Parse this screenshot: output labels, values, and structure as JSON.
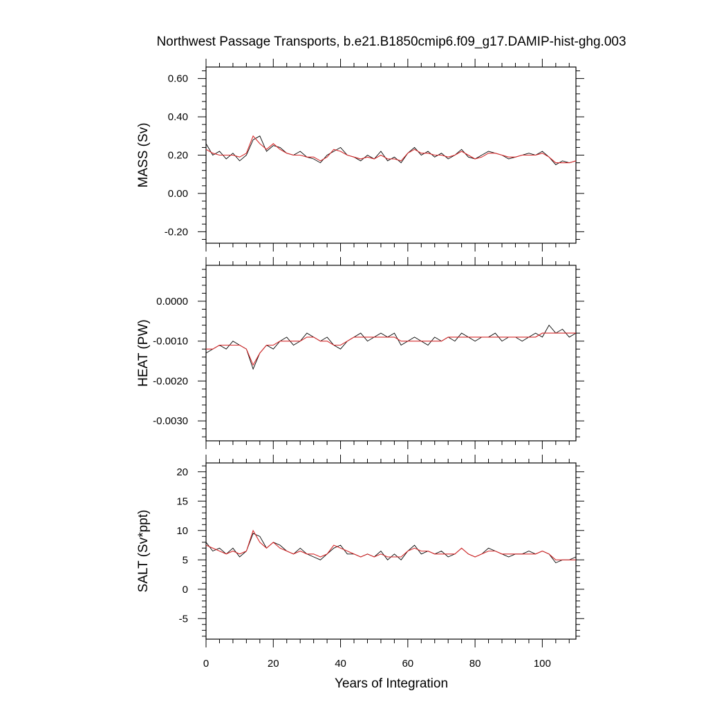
{
  "chart_data": {
    "type": "line",
    "title": "Northwest Passage Transports, b.e21.B1850cmip6.f09_g17.DAMIP-hist-ghg.003",
    "xlabel": "Years of Integration",
    "xlim": [
      0,
      110
    ],
    "x_ticks": [
      0,
      20,
      40,
      60,
      80,
      100
    ],
    "x_tick_labels": [
      "0",
      "20",
      "40",
      "60",
      "80",
      "100"
    ],
    "grid": false,
    "legend": "none",
    "raw_series_color": "#000000",
    "smooth_series_color": "#d62728",
    "panels": [
      {
        "id": "mass",
        "ylabel": "MASS (Sv)",
        "ylim": [
          -0.26,
          0.66
        ],
        "y_ticks": [
          -0.2,
          0.0,
          0.2,
          0.4,
          0.6
        ],
        "y_tick_labels": [
          "-0.20",
          "0.00",
          "0.20",
          "0.40",
          "0.60"
        ],
        "x": [
          0,
          2,
          4,
          6,
          8,
          10,
          12,
          14,
          16,
          18,
          20,
          22,
          24,
          26,
          28,
          30,
          32,
          34,
          36,
          38,
          40,
          42,
          44,
          46,
          48,
          50,
          52,
          54,
          56,
          58,
          60,
          62,
          64,
          66,
          68,
          70,
          72,
          74,
          76,
          78,
          80,
          82,
          84,
          86,
          88,
          90,
          92,
          94,
          96,
          98,
          100,
          102,
          104,
          106,
          108,
          110
        ],
        "raw_values": [
          0.26,
          0.2,
          0.22,
          0.18,
          0.21,
          0.17,
          0.2,
          0.28,
          0.3,
          0.22,
          0.25,
          0.24,
          0.21,
          0.2,
          0.22,
          0.19,
          0.18,
          0.16,
          0.2,
          0.22,
          0.24,
          0.2,
          0.19,
          0.17,
          0.2,
          0.18,
          0.22,
          0.17,
          0.19,
          0.16,
          0.21,
          0.24,
          0.2,
          0.22,
          0.19,
          0.21,
          0.18,
          0.2,
          0.23,
          0.19,
          0.18,
          0.2,
          0.22,
          0.21,
          0.2,
          0.18,
          0.19,
          0.2,
          0.21,
          0.2,
          0.22,
          0.19,
          0.15,
          0.17,
          0.16,
          0.17
        ],
        "smooth_values": [
          0.23,
          0.21,
          0.2,
          0.2,
          0.2,
          0.19,
          0.21,
          0.3,
          0.26,
          0.23,
          0.26,
          0.23,
          0.21,
          0.2,
          0.2,
          0.19,
          0.19,
          0.17,
          0.19,
          0.23,
          0.22,
          0.2,
          0.19,
          0.18,
          0.19,
          0.18,
          0.2,
          0.18,
          0.18,
          0.17,
          0.21,
          0.23,
          0.21,
          0.21,
          0.2,
          0.2,
          0.19,
          0.2,
          0.22,
          0.2,
          0.18,
          0.19,
          0.21,
          0.21,
          0.2,
          0.19,
          0.19,
          0.2,
          0.2,
          0.2,
          0.21,
          0.19,
          0.16,
          0.16,
          0.16,
          0.17
        ]
      },
      {
        "id": "heat",
        "ylabel": "HEAT (PW)",
        "ylim": [
          -0.0035,
          0.0009
        ],
        "y_ticks": [
          -0.003,
          -0.002,
          -0.001,
          0.0
        ],
        "y_tick_labels": [
          "-0.0030",
          "-0.0020",
          "-0.0010",
          "0.0000"
        ],
        "x": [
          0,
          2,
          4,
          6,
          8,
          10,
          12,
          14,
          16,
          18,
          20,
          22,
          24,
          26,
          28,
          30,
          32,
          34,
          36,
          38,
          40,
          42,
          44,
          46,
          48,
          50,
          52,
          54,
          56,
          58,
          60,
          62,
          64,
          66,
          68,
          70,
          72,
          74,
          76,
          78,
          80,
          82,
          84,
          86,
          88,
          90,
          92,
          94,
          96,
          98,
          100,
          102,
          104,
          106,
          108,
          110
        ],
        "raw_values": [
          -0.0013,
          -0.0012,
          -0.0011,
          -0.0012,
          -0.001,
          -0.0011,
          -0.0012,
          -0.0017,
          -0.0013,
          -0.0011,
          -0.0012,
          -0.001,
          -0.0009,
          -0.0011,
          -0.001,
          -0.0008,
          -0.0009,
          -0.001,
          -0.0009,
          -0.0011,
          -0.0012,
          -0.001,
          -0.0009,
          -0.0008,
          -0.001,
          -0.0009,
          -0.0008,
          -0.0009,
          -0.0008,
          -0.0011,
          -0.001,
          -0.0009,
          -0.001,
          -0.0011,
          -0.0009,
          -0.001,
          -0.0009,
          -0.001,
          -0.0008,
          -0.0009,
          -0.001,
          -0.0009,
          -0.0009,
          -0.0008,
          -0.001,
          -0.0009,
          -0.0009,
          -0.001,
          -0.0009,
          -0.0008,
          -0.0009,
          -0.0006,
          -0.0008,
          -0.0007,
          -0.0009,
          -0.0008
        ],
        "smooth_values": [
          -0.0012,
          -0.0012,
          -0.0011,
          -0.0011,
          -0.0011,
          -0.0011,
          -0.0012,
          -0.0016,
          -0.0013,
          -0.0011,
          -0.0011,
          -0.001,
          -0.001,
          -0.001,
          -0.001,
          -0.0009,
          -0.0009,
          -0.001,
          -0.001,
          -0.0011,
          -0.0011,
          -0.001,
          -0.0009,
          -0.0009,
          -0.0009,
          -0.0009,
          -0.0009,
          -0.0009,
          -0.0009,
          -0.001,
          -0.001,
          -0.001,
          -0.001,
          -0.001,
          -0.001,
          -0.001,
          -0.0009,
          -0.0009,
          -0.0009,
          -0.0009,
          -0.0009,
          -0.0009,
          -0.0009,
          -0.0009,
          -0.0009,
          -0.0009,
          -0.0009,
          -0.0009,
          -0.0009,
          -0.0009,
          -0.0008,
          -0.0008,
          -0.0008,
          -0.0008,
          -0.0008,
          -0.0008
        ]
      },
      {
        "id": "salt",
        "ylabel": "SALT (Sv*ppt)",
        "ylim": [
          -8.5,
          21.5
        ],
        "y_ticks": [
          -5,
          0,
          5,
          10,
          15,
          20
        ],
        "y_tick_labels": [
          "-5",
          "0",
          "5",
          "10",
          "15",
          "20"
        ],
        "x": [
          0,
          2,
          4,
          6,
          8,
          10,
          12,
          14,
          16,
          18,
          20,
          22,
          24,
          26,
          28,
          30,
          32,
          34,
          36,
          38,
          40,
          42,
          44,
          46,
          48,
          50,
          52,
          54,
          56,
          58,
          60,
          62,
          64,
          66,
          68,
          70,
          72,
          74,
          76,
          78,
          80,
          82,
          84,
          86,
          88,
          90,
          92,
          94,
          96,
          98,
          100,
          102,
          104,
          106,
          108,
          110
        ],
        "raw_values": [
          8,
          6.5,
          7,
          6,
          7,
          5.5,
          6.5,
          9.5,
          9,
          7,
          8,
          7.5,
          6.5,
          6,
          7,
          6,
          5.5,
          5,
          6,
          7,
          7.5,
          6,
          6,
          5.5,
          6,
          5.5,
          6.5,
          5,
          6,
          5,
          6.5,
          7.5,
          6,
          6.5,
          6,
          6.5,
          5.5,
          6,
          7,
          6,
          5.5,
          6,
          7,
          6.5,
          6,
          5.5,
          6,
          6,
          6.5,
          6,
          6.5,
          6,
          4.5,
          5,
          5,
          5.5
        ],
        "smooth_values": [
          7.5,
          7,
          6.5,
          6,
          6.5,
          6,
          6.5,
          10,
          8,
          7,
          8,
          7,
          6.5,
          6,
          6.5,
          6,
          6,
          5.5,
          6,
          7.5,
          7,
          6.5,
          6,
          5.5,
          6,
          5.5,
          6,
          5.5,
          5.5,
          5.5,
          6.5,
          7,
          6.5,
          6.5,
          6,
          6,
          6,
          6,
          7,
          6,
          5.5,
          6,
          6.5,
          6.5,
          6,
          6,
          6,
          6,
          6,
          6,
          6.5,
          6,
          5,
          5,
          5,
          5
        ]
      }
    ]
  }
}
